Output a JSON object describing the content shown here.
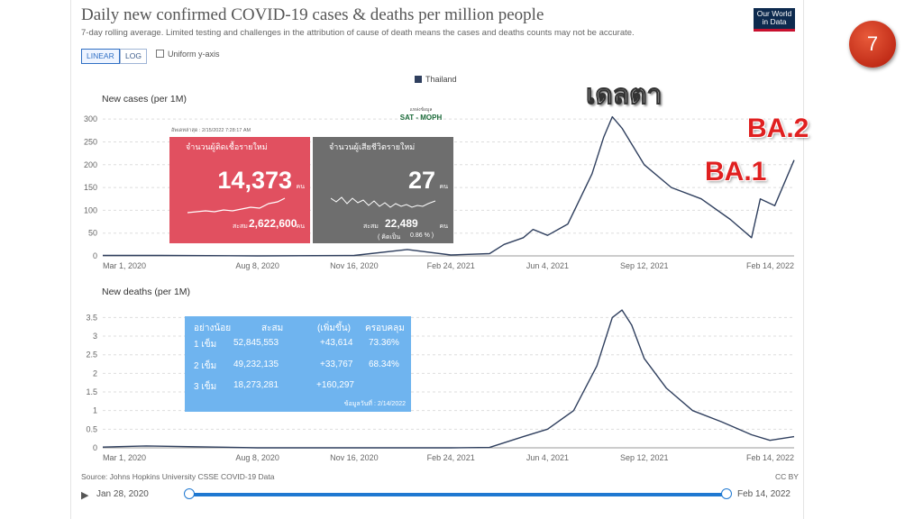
{
  "header": {
    "title": "Daily new confirmed COVID-19 cases & deaths per million people",
    "subtitle": "7-day rolling average. Limited testing and challenges in the attribution of cause of death means the cases and deaths counts may not be accurate.",
    "logo": "Our World in Data",
    "slide_number": "7"
  },
  "controls": {
    "linear_label": "LINEAR",
    "log_label": "LOG",
    "uniform_label": "Uniform y-axis"
  },
  "legend": {
    "series_name": "Thailand",
    "series_color": "#2f3f5e"
  },
  "chart_data": [
    {
      "type": "line",
      "title": "New cases (per 1M)",
      "x": [
        "2020-03-01",
        "2020-05-01",
        "2020-08-08",
        "2020-11-16",
        "2021-01-10",
        "2021-02-24",
        "2021-04-05",
        "2021-04-20",
        "2021-05-10",
        "2021-05-20",
        "2021-06-04",
        "2021-06-25",
        "2021-07-20",
        "2021-08-01",
        "2021-08-10",
        "2021-08-20",
        "2021-09-12",
        "2021-10-10",
        "2021-11-10",
        "2021-12-10",
        "2022-01-01",
        "2022-01-10",
        "2022-01-25",
        "2022-02-14"
      ],
      "series": [
        {
          "name": "Thailand",
          "values": [
            1,
            1,
            0,
            1,
            14,
            2,
            5,
            25,
            40,
            58,
            45,
            70,
            180,
            260,
            305,
            280,
            200,
            150,
            125,
            80,
            40,
            125,
            110,
            210
          ]
        }
      ],
      "ylim": [
        0,
        320
      ],
      "yticks": [
        "0",
        "50",
        "100",
        "150",
        "200",
        "250",
        "300"
      ],
      "xticks": [
        "Mar 1, 2020",
        "Aug 8, 2020",
        "Nov 16, 2020",
        "Feb 24, 2021",
        "Jun 4, 2021",
        "Sep 12, 2021",
        "Feb 14, 2022"
      ]
    },
    {
      "type": "line",
      "title": "New deaths (per 1M)",
      "x": [
        "2020-03-01",
        "2020-04-15",
        "2020-08-08",
        "2020-11-16",
        "2021-02-24",
        "2021-04-05",
        "2021-05-10",
        "2021-06-04",
        "2021-07-01",
        "2021-07-25",
        "2021-08-10",
        "2021-08-20",
        "2021-08-30",
        "2021-09-12",
        "2021-10-05",
        "2021-11-01",
        "2021-12-01",
        "2022-01-01",
        "2022-01-20",
        "2022-02-14"
      ],
      "series": [
        {
          "name": "Thailand",
          "values": [
            0.02,
            0.05,
            0.0,
            0.0,
            0.0,
            0.01,
            0.3,
            0.5,
            1.0,
            2.2,
            3.5,
            3.7,
            3.3,
            2.4,
            1.6,
            1.0,
            0.7,
            0.35,
            0.2,
            0.3
          ]
        }
      ],
      "ylim": [
        0,
        3.8
      ],
      "yticks": [
        "0",
        "0.5",
        "1",
        "1.5",
        "2",
        "2.5",
        "3",
        "3.5"
      ],
      "xticks": [
        "Mar 1, 2020",
        "Aug 8, 2020",
        "Nov 16, 2020",
        "Feb 24, 2021",
        "Jun 4, 2021",
        "Sep 12, 2021",
        "Feb 14, 2022"
      ]
    }
  ],
  "cards": {
    "updated": "อัพเดทล่าสุด : 2/15/2022 7:28:17 AM",
    "sat_caption": "แหล่งข้อมูล",
    "sat_name": "SAT - MOPH",
    "new_cases_label": "จำนวนผู้ติดเชื้อรายใหม่",
    "new_cases_value": "14,373",
    "cases_unit": "คน",
    "cumulative_label": "สะสม",
    "cumulative_cases": "2,622,600",
    "new_deaths_label": "จำนวนผู้เสียชีวิตรายใหม่",
    "new_deaths_value": "27",
    "cumulative_deaths": "22,489",
    "death_rate_label": "( คิดเป็น",
    "death_rate": "0.86 % )"
  },
  "vaccine_table": {
    "headers": [
      "อย่างน้อย",
      "สะสม",
      "(เพิ่มขึ้น)",
      "ครอบคลุม"
    ],
    "rows": [
      {
        "dose": "1 เข็ม",
        "total": "52,845,553",
        "increase": "+43,614",
        "coverage": "73.36%"
      },
      {
        "dose": "2 เข็ม",
        "total": "49,232,135",
        "increase": "+33,767",
        "coverage": "68.34%"
      },
      {
        "dose": "3 เข็ม",
        "total": "18,273,281",
        "increase": "+160,297",
        "coverage": ""
      }
    ],
    "note": "ข้อมูลวันที่ : 2/14/2022"
  },
  "annotations": {
    "delta": "เดลตา",
    "ba1": "BA.1",
    "ba2": "BA.2"
  },
  "footer": {
    "source": "Source: Johns Hopkins University CSSE COVID-19 Data",
    "license": "CC BY",
    "start_date": "Jan 28, 2020",
    "end_date": "Feb 14, 2022"
  }
}
